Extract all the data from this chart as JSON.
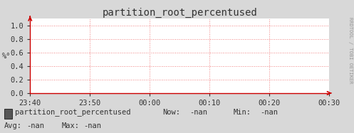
{
  "title": "partition_root_percentused",
  "ylabel": "%°",
  "ylim": [
    0.0,
    1.1
  ],
  "yticks": [
    0.0,
    0.2,
    0.4,
    0.6,
    0.8,
    1.0
  ],
  "xtick_labels": [
    "23:40",
    "23:50",
    "00:00",
    "00:10",
    "00:20",
    "00:30"
  ],
  "bg_color": "#d8d8d8",
  "plot_bg_color": "#ffffff",
  "grid_color": "#f08080",
  "axis_color": "#cc0000",
  "text_color": "#333333",
  "legend_box_color": "#555555",
  "legend_text": "partition_root_percentused",
  "now_label": "Now:",
  "now_val": "-nan",
  "min_label": "Min:",
  "min_val": "-nan",
  "avg_label": "Avg:",
  "avg_val": "-nan",
  "max_label": "Max:",
  "max_val": "-nan",
  "watermark": "RRDTOOL / TOBI OETIKER",
  "font_size": 7.5,
  "title_font_size": 10
}
